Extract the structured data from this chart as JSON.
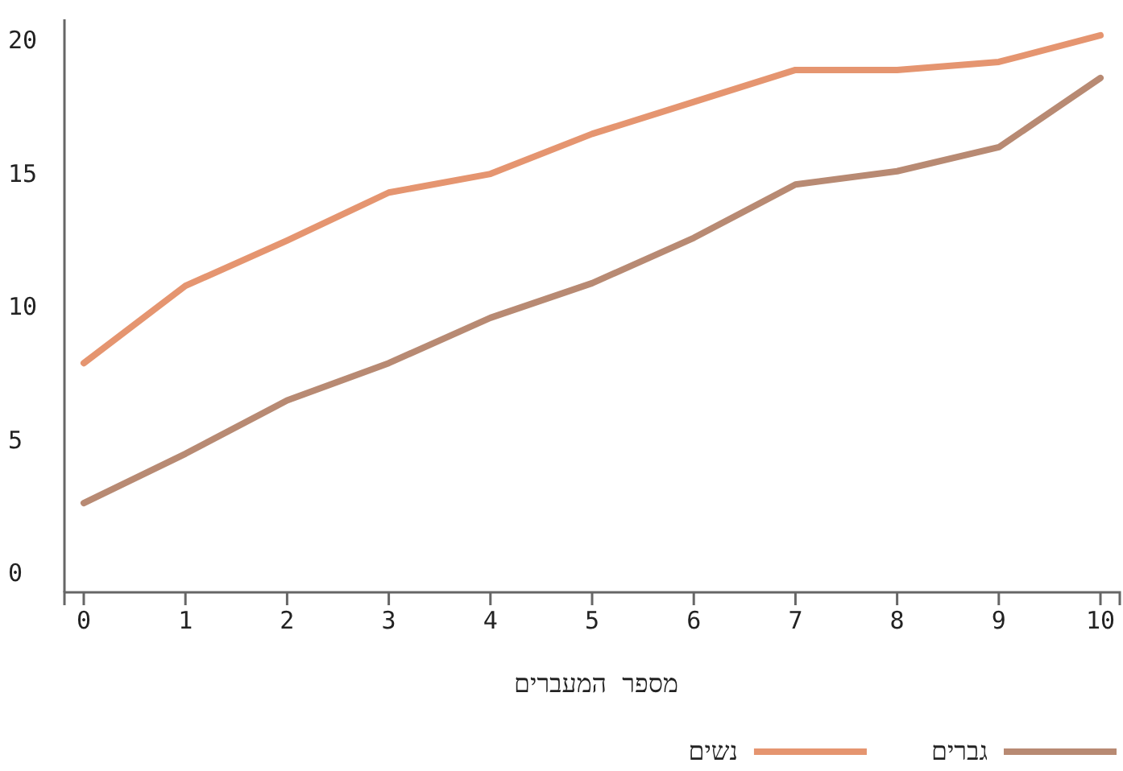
{
  "chart_data": {
    "type": "line",
    "xlabel": "מספר המעברים",
    "x": [
      0,
      1,
      2,
      3,
      4,
      5,
      6,
      7,
      8,
      9,
      10
    ],
    "xlim": [
      -0.19,
      10.19
    ],
    "xticks": [
      0,
      1,
      2,
      3,
      4,
      5,
      6,
      7,
      8,
      9,
      10
    ],
    "ylim": [
      -0.7,
      20.8
    ],
    "yticks": [
      0,
      5,
      10,
      15,
      20
    ],
    "series": [
      {
        "name": "גברים",
        "color": "#b88a73",
        "values": [
          2.65,
          4.5,
          6.5,
          7.9,
          9.6,
          10.9,
          12.6,
          14.6,
          15.1,
          16.0,
          18.6
        ]
      },
      {
        "name": "נשים",
        "color": "#e59570",
        "values": [
          7.9,
          10.8,
          12.5,
          14.3,
          15.0,
          16.5,
          17.7,
          18.9,
          18.9,
          19.2,
          20.2
        ]
      }
    ],
    "grid": false,
    "legend": "bottom",
    "marker": "none",
    "line_style": "solid"
  }
}
